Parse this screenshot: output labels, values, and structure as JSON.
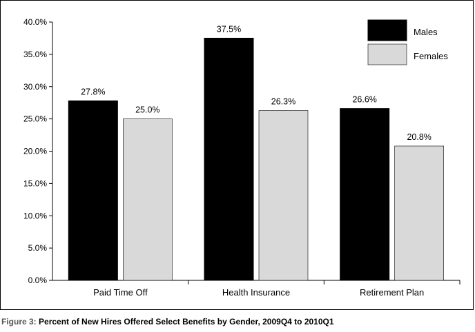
{
  "caption": {
    "figure_label": "Figure 3:",
    "title": "Percent of New Hires Offered Select Benefits by Gender, 2009Q4 to 2010Q1"
  },
  "colors": {
    "males": "#000000",
    "females": "#d9d9d9"
  },
  "chart_data": {
    "type": "bar",
    "title": "",
    "xlabel": "",
    "ylabel": "",
    "categories": [
      "Paid Time Off",
      "Health Insurance",
      "Retirement Plan"
    ],
    "series": [
      {
        "name": "Males",
        "values": [
          27.8,
          37.5,
          26.6
        ],
        "labels": [
          "27.8%",
          "37.5%",
          "26.6%"
        ]
      },
      {
        "name": "Females",
        "values": [
          25.0,
          26.3,
          20.8
        ],
        "labels": [
          "25.0%",
          "26.3%",
          "20.8%"
        ]
      }
    ],
    "ylim": [
      0,
      40
    ],
    "yticks": [
      0,
      5,
      10,
      15,
      20,
      25,
      30,
      35,
      40
    ],
    "ytick_labels": [
      "0.0%",
      "5.0%",
      "10.0%",
      "15.0%",
      "20.0%",
      "25.0%",
      "30.0%",
      "35.0%",
      "40.0%"
    ],
    "grid": false,
    "legend_position": "top-right"
  }
}
